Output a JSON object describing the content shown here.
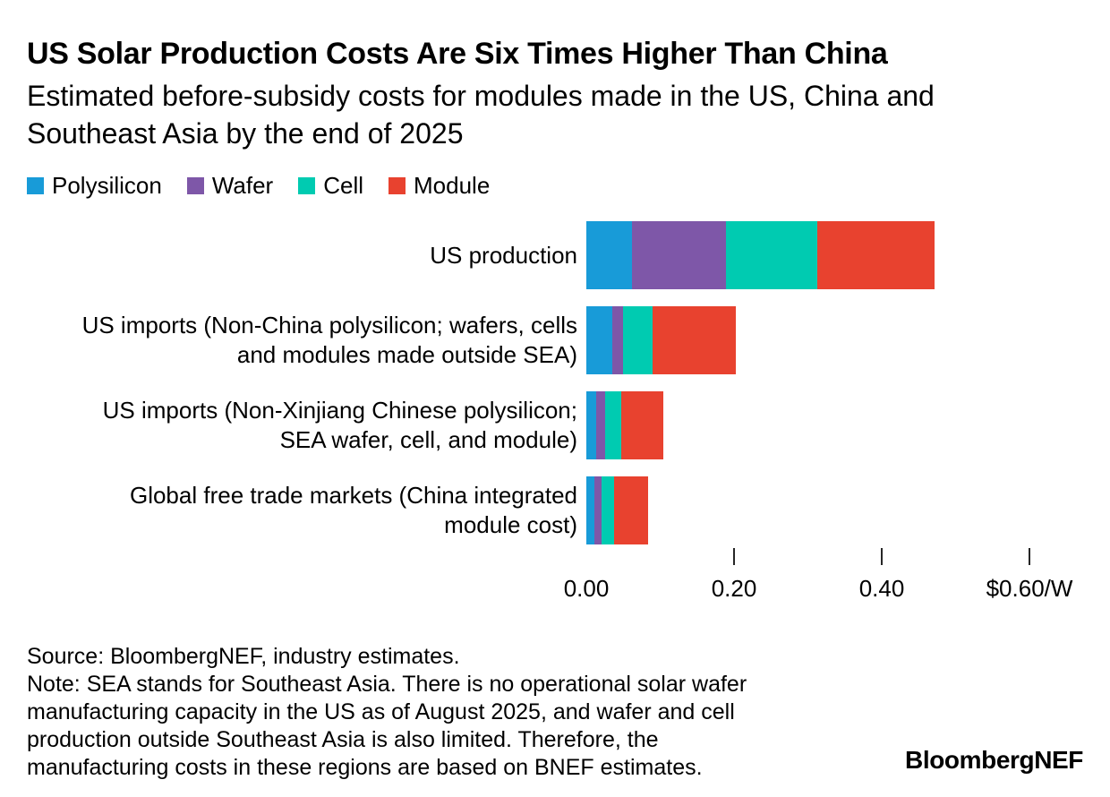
{
  "header": {
    "title": "US Solar Production Costs Are Six Times Higher Than China",
    "subtitle": "Estimated before-subsidy costs for modules made in the US, China and Southeast Asia by the end of 2025",
    "subtitle_lines": [
      "Estimated before-subsidy costs for modules made in the US, China and",
      "Southeast Asia by the end of 2025"
    ]
  },
  "legend": [
    {
      "label": "Polysilicon",
      "color": "#189BD8"
    },
    {
      "label": "Wafer",
      "color": "#7E57A8"
    },
    {
      "label": "Cell",
      "color": "#00CBB1"
    },
    {
      "label": "Module",
      "color": "#E8422F"
    }
  ],
  "chart_data": {
    "type": "bar",
    "orientation": "horizontal",
    "stacked": true,
    "title": "US Solar Production Costs Are Six Times Higher Than China",
    "xlabel": "$/W",
    "xlim": [
      0,
      0.6
    ],
    "grid": false,
    "legend_position": "top",
    "categories": [
      "US production",
      "US imports (Non-China polysilicon; wafers, cells and modules made outside SEA)",
      "US imports (Non-Xinjiang Chinese polysilicon; SEA wafer, cell, and module)",
      "Global free trade markets (China integrated module cost)"
    ],
    "category_lines": [
      [
        "US production"
      ],
      [
        "US imports (Non-China polysilicon; wafers, cells",
        "and modules made outside SEA)"
      ],
      [
        "US imports (Non-Xinjiang Chinese polysilicon;",
        "SEA wafer, cell, and module)"
      ],
      [
        "Global free trade markets (China integrated",
        "module cost)"
      ]
    ],
    "series": [
      {
        "name": "Polysilicon",
        "color": "#189BD8",
        "values": [
          0.062,
          0.035,
          0.013,
          0.011
        ]
      },
      {
        "name": "Wafer",
        "color": "#7E57A8",
        "values": [
          0.127,
          0.015,
          0.012,
          0.01
        ]
      },
      {
        "name": "Cell",
        "color": "#00CBB1",
        "values": [
          0.124,
          0.04,
          0.022,
          0.017
        ]
      },
      {
        "name": "Module",
        "color": "#E8422F",
        "values": [
          0.158,
          0.112,
          0.057,
          0.046
        ]
      }
    ],
    "totals": [
      0.471,
      0.202,
      0.104,
      0.084
    ],
    "x_ticks": [
      {
        "value": 0.0,
        "label": "0.00",
        "mark": false
      },
      {
        "value": 0.2,
        "label": "0.20",
        "mark": true
      },
      {
        "value": 0.4,
        "label": "0.40",
        "mark": true
      },
      {
        "value": 0.6,
        "label": "$0.60/W",
        "mark": true
      }
    ]
  },
  "footer": {
    "source": "Source: BloombergNEF, industry estimates.",
    "note": "Note: SEA stands for Southeast Asia. There is no operational solar wafer manufacturing capacity in the US as of August 2025, and wafer and cell production outside Southeast Asia is also limited. Therefore, the manufacturing costs in these regions are based on BNEF estimates.",
    "note_lines": [
      "Note: SEA stands for Southeast Asia. There is no operational solar wafer",
      "manufacturing capacity in the US as of August 2025, and wafer and cell",
      "production outside Southeast Asia is also limited. Therefore, the",
      "manufacturing costs in these regions are based on BNEF estimates."
    ],
    "logo": "BloombergNEF"
  }
}
